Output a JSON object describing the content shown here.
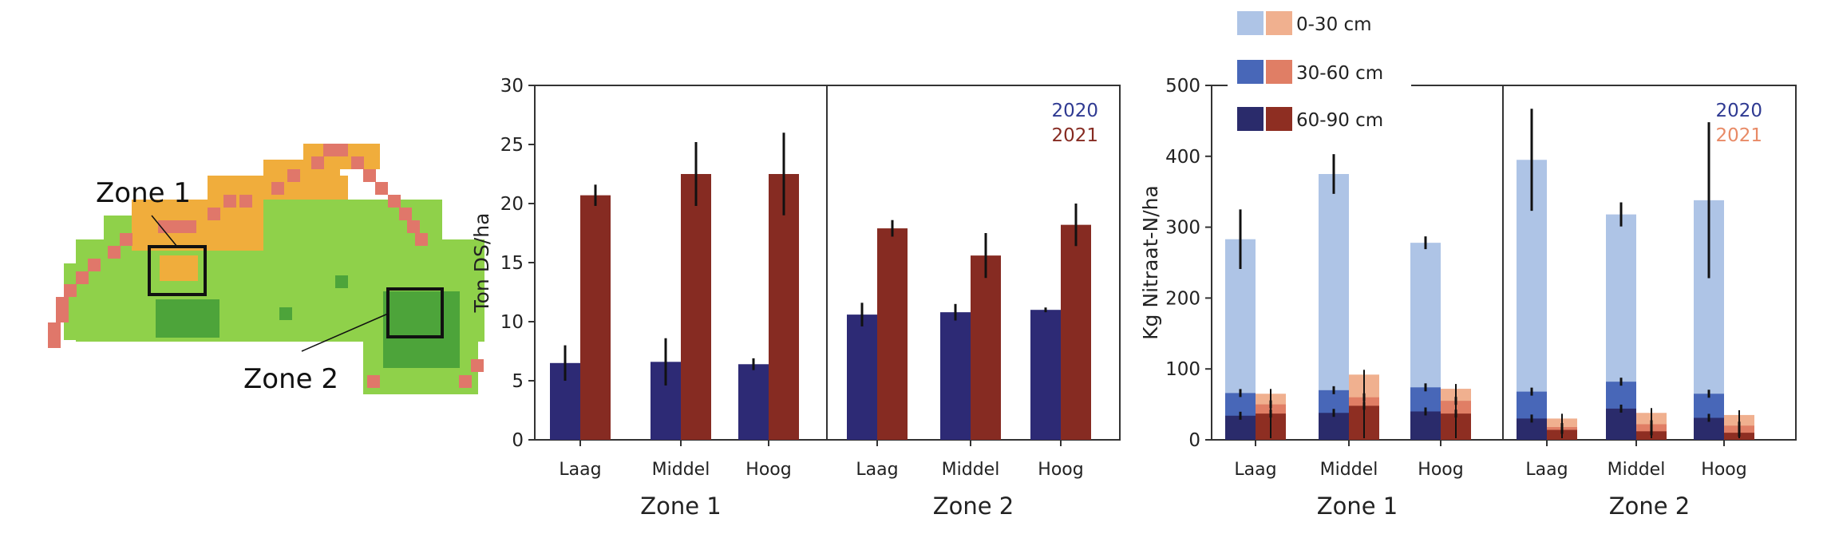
{
  "map": {
    "zone1_label": "Zone 1",
    "zone2_label": "Zone 2"
  },
  "colors": {
    "y2020": "#2d2a75",
    "y2021": "#862b22",
    "axis": "#333333",
    "err": "#111111",
    "blue_0_30": "#aec4e6",
    "blue_30_60": "#4867b8",
    "blue_60_90": "#2a2b6b",
    "red_0_30": "#f0b08f",
    "red_30_60": "#e07e65",
    "red_60_90": "#8e2e22",
    "legend_2020": "#2f3a92",
    "legend_2021": "#862b22",
    "legend_2021_light": "#e88a66",
    "map_light_green": "#8fd14a",
    "map_dark_green": "#4da43a",
    "map_orange": "#f0ad3c",
    "map_red": "#e0776a"
  },
  "chart_data": [
    {
      "type": "bar",
      "ylabel": "Ton DS/ha",
      "ylim": [
        0,
        30
      ],
      "yticks": [
        "0",
        "5",
        "10",
        "15",
        "20",
        "25",
        "30"
      ],
      "categories": [
        "Laag",
        "Middel",
        "Hoog",
        "Laag",
        "Middel",
        "Hoog"
      ],
      "groups": [
        "Zone 1",
        "Zone 2"
      ],
      "legend": [
        "2020",
        "2021"
      ],
      "legend_placement": "top-right",
      "series": [
        {
          "name": "2020",
          "values": [
            6.5,
            6.6,
            6.4,
            10.6,
            10.8,
            11.0
          ],
          "err": [
            1.5,
            2.0,
            0.5,
            1.0,
            0.7,
            0.2
          ]
        },
        {
          "name": "2021",
          "values": [
            20.7,
            22.5,
            22.5,
            17.9,
            15.6,
            18.2
          ],
          "err": [
            0.9,
            2.7,
            3.5,
            0.7,
            1.9,
            1.8
          ]
        }
      ]
    },
    {
      "type": "bar",
      "stacked": true,
      "ylabel": "Kg Nitraat-N/ha",
      "ylim": [
        0,
        500
      ],
      "yticks": [
        "0",
        "100",
        "200",
        "300",
        "400",
        "500"
      ],
      "categories": [
        "Laag",
        "Middel",
        "Hoog",
        "Laag",
        "Middel",
        "Hoog"
      ],
      "groups": [
        "Zone 1",
        "Zone 2"
      ],
      "layers": [
        "0-30 cm",
        "30-60 cm",
        "60-90 cm"
      ],
      "year_legend": [
        "2020",
        "2021"
      ],
      "series": [
        {
          "year": "2020",
          "total": [
            283,
            375,
            278,
            395,
            318,
            338
          ],
          "total_err": [
            42,
            28,
            9,
            72,
            17,
            110
          ],
          "mid_top": [
            66,
            70,
            74,
            68,
            82,
            65
          ],
          "low_top": [
            34,
            38,
            40,
            30,
            44,
            31
          ]
        },
        {
          "year": "2021",
          "total": [
            65,
            92,
            72,
            30,
            38,
            35
          ],
          "total_err": [
            0,
            0,
            0,
            0,
            0,
            0
          ],
          "mid_top": [
            50,
            60,
            55,
            18,
            22,
            20
          ],
          "low_top": [
            37,
            48,
            37,
            14,
            12,
            10
          ]
        }
      ]
    }
  ]
}
